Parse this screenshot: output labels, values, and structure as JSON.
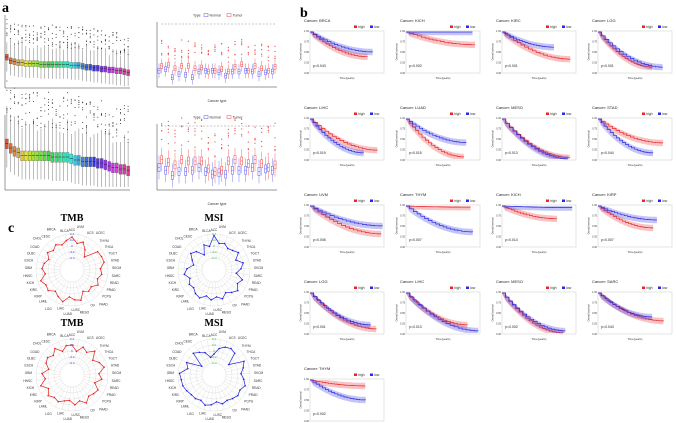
{
  "panels": {
    "a": "a",
    "b": "b",
    "c": "c"
  },
  "colors": {
    "high": "#e8262a",
    "low": "#2a2ae0",
    "normal": "#5b5bf0",
    "tumor": "#f04848",
    "tmb": "#e82020",
    "msi": "#2020e0",
    "msi_ticks": "#33cc33",
    "tmb_ticks": "#4444ee"
  },
  "panel_a": {
    "legend_title": "Type",
    "legend_normal": "Normal",
    "legend_tumor": "Tumor",
    "xlabel": "Cancer type"
  },
  "km_common": {
    "legend_high": "high",
    "legend_low": "low",
    "xlabel": "Time(years)",
    "ylabel": "Overall survival",
    "yticks": [
      "1.00",
      "0.75",
      "0.50",
      "0.25",
      "0.00"
    ]
  },
  "chart_data": [
    {
      "type": "box",
      "panel": "a-top-left",
      "medians": [
        3.4,
        3.0,
        2.9,
        2.8,
        2.8,
        2.7,
        2.7,
        2.7,
        2.7,
        2.6,
        2.6,
        2.6,
        2.6,
        2.6,
        2.6,
        2.6,
        2.6,
        2.5,
        2.5,
        2.5,
        2.4,
        2.3,
        2.3,
        2.2,
        2.2,
        2.1,
        2.1,
        2.0,
        2.0,
        1.9,
        1.9,
        1.8,
        1.7
      ],
      "ylim": [
        0,
        8
      ]
    },
    {
      "type": "box",
      "panel": "a-top-right",
      "xlabel": "Cancer type",
      "normal_medians": [
        2.0,
        2.2,
        1.2,
        1.6,
        1.5,
        1.2,
        1.9,
        2.0,
        2.0,
        1.8,
        1.4,
        1.9,
        1.9,
        2.0,
        1.9,
        1.6,
        1.8,
        1.9
      ],
      "tumor_medians": [
        2.6,
        2.7,
        2.3,
        2.6,
        2.6,
        2.3,
        2.4,
        1.9,
        2.0,
        2.2,
        1.9,
        2.5,
        2.8,
        2.0,
        2.6,
        2.3,
        2.0,
        2.5
      ],
      "ylim": [
        0,
        8
      ]
    },
    {
      "type": "box",
      "panel": "a-bottom-left",
      "medians": [
        3.1,
        2.8,
        2.6,
        2.5,
        2.3,
        2.3,
        2.3,
        2.3,
        2.3,
        2.3,
        2.3,
        2.3,
        2.2,
        2.2,
        2.2,
        2.2,
        2.2,
        2.1,
        2.0,
        2.0,
        1.9,
        1.9,
        1.9,
        1.9,
        1.8,
        1.8,
        1.7,
        1.6,
        1.5,
        1.5,
        1.4,
        1.4,
        1.3
      ],
      "ylim": [
        0,
        5
      ]
    },
    {
      "type": "box",
      "panel": "a-bottom-right",
      "xlabel": "Cancer type",
      "normal_medians": [
        1.7,
        1.5,
        1.1,
        1.4,
        1.4,
        1.5,
        1.7,
        1.4,
        1.2,
        1.3,
        1.2,
        1.5,
        1.5,
        1.5,
        1.7,
        1.4,
        1.6,
        1.5
      ],
      "tumor_medians": [
        2.3,
        2.1,
        1.9,
        2.3,
        2.2,
        2.2,
        2.2,
        1.6,
        1.4,
        1.5,
        2.2,
        2.3,
        2.2,
        2.0,
        2.3,
        2.0,
        1.7,
        1.9
      ],
      "ylim": [
        0,
        5
      ]
    },
    {
      "type": "line",
      "panel": "b",
      "plots": [
        {
          "cancer": "Cancer: BRCA",
          "p": "p=0.043",
          "tmax": 20,
          "high_end": 0.38,
          "low_end": 0.5
        },
        {
          "cancer": "Cancer: KICH",
          "p": "p=0.002",
          "tmax": 12,
          "high_end": 0.68,
          "low_end": 1.0
        },
        {
          "cancer": "Cancer: KIRC",
          "p": "p<0.001",
          "tmax": 12,
          "high_end": 0.32,
          "low_end": 0.62
        },
        {
          "cancer": "Cancer: LGG",
          "p": "p<0.001",
          "tmax": 20,
          "high_end": 0.12,
          "low_end": 0.12
        },
        {
          "cancer": "Cancer: LIHC",
          "p": "p=0.019",
          "tmax": 10,
          "high_end": 0.22,
          "low_end": 0.15
        },
        {
          "cancer": "Cancer: LUAD",
          "p": "p=0.015",
          "tmax": 20,
          "high_end": 0.05,
          "low_end": 0.41
        },
        {
          "cancer": "Cancer: MESO",
          "p": "p=0.013",
          "tmax": 8,
          "high_end": 0.03,
          "low_end": 0.0
        },
        {
          "cancer": "Cancer: STAD",
          "p": "p=0.044",
          "tmax": 10,
          "high_end": 0.4,
          "low_end": 0.15
        },
        {
          "cancer": "Cancer: UVM",
          "p": "p=0.006",
          "tmax": 8,
          "high_end": 0.3,
          "low_end": 0.5
        },
        {
          "cancer": "Cancer: THYM",
          "p": "p=0.007",
          "tmax": 12,
          "high_end": 0.97,
          "low_end": 0.35
        },
        {
          "cancer": "Cancer: KICH",
          "p": "p=0.014",
          "tmax": 12,
          "high_end": 0.68,
          "low_end": 0.96
        },
        {
          "cancer": "Cancer: KIRP",
          "p": "p=0.007",
          "tmax": 20,
          "high_end": 0.45,
          "low_end": 0.65
        },
        {
          "cancer": "Cancer: LGG",
          "p": "p<0.001",
          "tmax": 15,
          "high_end": 0.1,
          "low_end": 0.2
        },
        {
          "cancer": "Cancer: LIHC",
          "p": "p=0.013",
          "tmax": 10,
          "high_end": 0.2,
          "low_end": 0.05
        },
        {
          "cancer": "Cancer: MESO",
          "p": "p=0.002",
          "tmax": 8,
          "high_end": 0.0,
          "low_end": 0.05
        },
        {
          "cancer": "Cancer: SARC",
          "p": "p=0.043",
          "tmax": 20,
          "high_end": 0.3,
          "low_end": 0.4
        },
        {
          "cancer": "Cancer: THYM",
          "p": "p=0.002",
          "tmax": 12,
          "high_end": 0.85,
          "low_end": 0.5
        }
      ]
    },
    {
      "type": "radar",
      "panel": "c",
      "labels": [
        "ACC",
        "UVM",
        "UCS",
        "UCEC",
        "THYM",
        "THCA",
        "TGCT",
        "STAD",
        "SKCM",
        "SARC",
        "READ",
        "PRAD",
        "PCPG",
        "PAAD",
        "OV",
        "MESO",
        "LUSC",
        "LUAD",
        "LIHC",
        "LGG",
        "LAML",
        "KIRP",
        "KIRC",
        "KICH",
        "HNSC",
        "GBM",
        "ESCA",
        "DLBC",
        "COAD",
        "CHOL",
        "CESC",
        "BRCA",
        "BLCA"
      ],
      "charts": [
        {
          "title": "TMB",
          "ticks": [
            "0.4",
            "0.2",
            "0",
            "-0.2",
            "-0.4"
          ],
          "series": "tmb",
          "values": [
            0.3,
            0.1,
            0.2,
            0.0,
            -0.2,
            0.25,
            0.28,
            0.3,
            0.15,
            0.2,
            0.1,
            0.2,
            0.05,
            0.1,
            0.0,
            0.25,
            0.2,
            0.1,
            0.3,
            0.2,
            0.1,
            0.25,
            0.2,
            0.3,
            0.1,
            0.2,
            0.15,
            0.05,
            0.2,
            0.1,
            0.2,
            0.1,
            0.2
          ]
        },
        {
          "title": "MSI",
          "ticks": [
            "0.4",
            "0.2",
            "0",
            "-0.2",
            "-0.4"
          ],
          "series": "msi",
          "values": [
            0.35,
            0.1,
            0.15,
            0.05,
            0.1,
            0.2,
            0.0,
            0.2,
            0.1,
            -0.05,
            0.2,
            0.1,
            0.25,
            0.15,
            0.05,
            0.2,
            0.1,
            0.2,
            0.1,
            0.25,
            0.2,
            0.1,
            0.15,
            0.05,
            0.2,
            0.1,
            -0.1,
            0.0,
            0.15,
            0.05,
            -0.2,
            0.1,
            0.0
          ]
        },
        {
          "title": "TMB",
          "ticks": [
            "0.4",
            "0.2",
            "0",
            "-0.2",
            "-0.4"
          ],
          "series": "tmb",
          "values": [
            0.2,
            0.0,
            0.2,
            0.1,
            0.3,
            0.05,
            0.2,
            0.3,
            0.1,
            0.2,
            0.0,
            0.2,
            0.15,
            0.1,
            0.25,
            0.1,
            0.2,
            0.05,
            0.1,
            0.2,
            0.15,
            0.25,
            0.1,
            0.3,
            0.1,
            0.2,
            0.0,
            0.15,
            0.2,
            0.1,
            0.25,
            0.05,
            0.2
          ]
        },
        {
          "title": "MSI",
          "ticks": [
            "0.4",
            "0.2",
            "0",
            "-0.2",
            "-0.4"
          ],
          "series": "msi",
          "values": [
            -0.1,
            0.1,
            0.2,
            0.25,
            0.2,
            -0.2,
            0.3,
            0.2,
            0.1,
            0.2,
            0.3,
            0.2,
            0.25,
            0.2,
            0.15,
            0.2,
            0.1,
            0.2,
            0.25,
            0.15,
            0.2,
            0.2,
            0.25,
            0.3,
            0.3,
            0.35,
            0.1,
            0.2,
            -0.3,
            0.2,
            0.1,
            0.0,
            -0.2
          ]
        }
      ]
    }
  ]
}
